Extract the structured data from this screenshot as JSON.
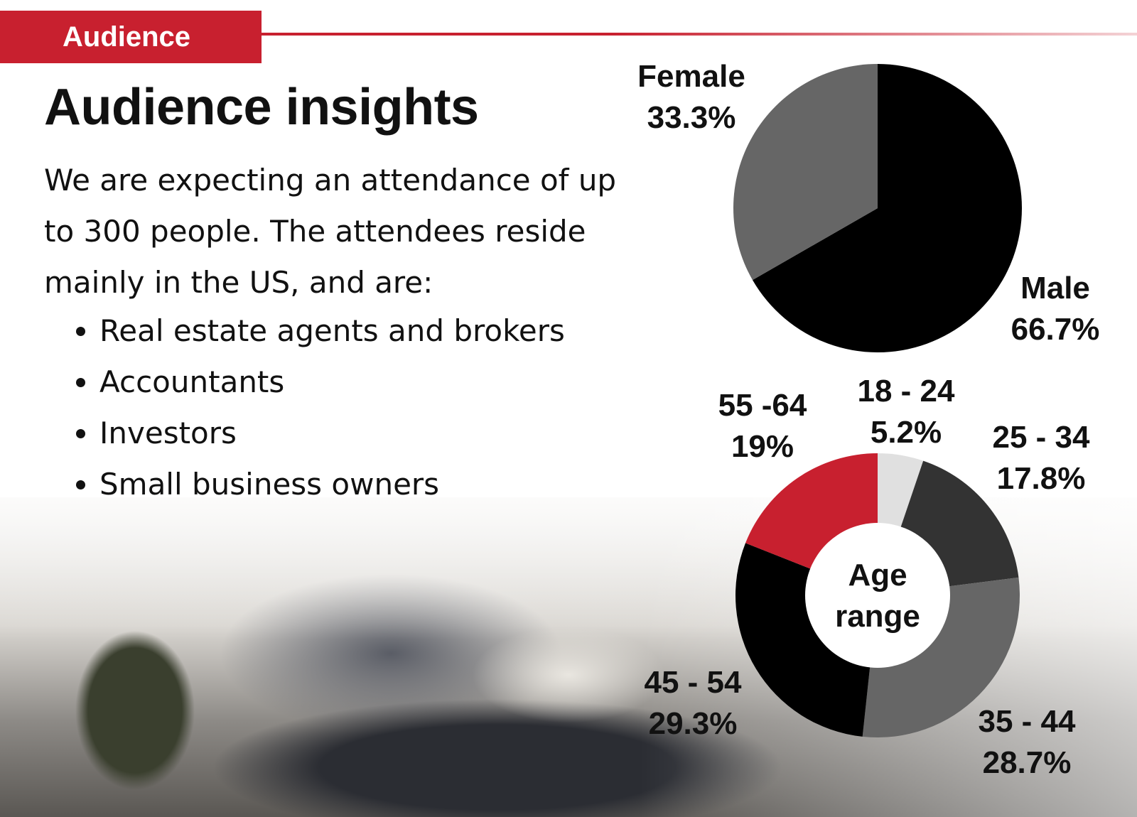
{
  "section_tag": "Audience",
  "title": "Audience insights",
  "intro": "We are expecting an attendance of up to 300 people. The attendees reside mainly in the US, and are:",
  "bullets": [
    "Real estate agents and brokers",
    "Accountants",
    "Investors",
    "Small business owners"
  ],
  "colors": {
    "accent": "#c8202f",
    "black": "#000000",
    "dark_gray": "#333333",
    "mid_gray": "#666666",
    "light_gray": "#e0e0e0"
  },
  "chart_data": [
    {
      "type": "pie",
      "title": "",
      "slices": [
        {
          "label": "Male",
          "value_label": "66.7%",
          "value": 66.7,
          "color": "#000000"
        },
        {
          "label": "Female",
          "value_label": "33.3%",
          "value": 33.3,
          "color": "#666666"
        }
      ]
    },
    {
      "type": "pie",
      "variant": "donut",
      "center_label": [
        "Age",
        "range"
      ],
      "slices": [
        {
          "label": "18 - 24",
          "value_label": "5.2%",
          "value": 5.2,
          "color": "#e0e0e0"
        },
        {
          "label": "25 - 34",
          "value_label": "17.8%",
          "value": 17.8,
          "color": "#333333"
        },
        {
          "label": "35 - 44",
          "value_label": "28.7%",
          "value": 28.7,
          "color": "#666666"
        },
        {
          "label": "45 - 54",
          "value_label": "29.3%",
          "value": 29.3,
          "color": "#000000"
        },
        {
          "label": "55 -64",
          "value_label": "19%",
          "value": 19,
          "color": "#c8202f"
        }
      ]
    }
  ]
}
